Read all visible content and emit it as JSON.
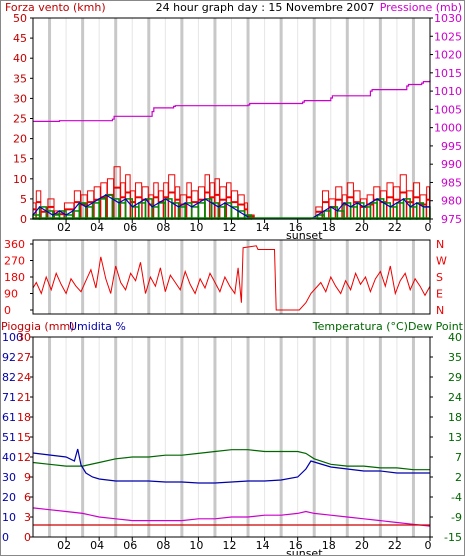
{
  "colors": {
    "wind_axis": "#c00000",
    "pressure_axis": "#cc00cc",
    "gust": "#ee0000",
    "wind_green": "#008800",
    "wind_blue": "#0000cc",
    "direction": "#ee0000",
    "humidity": "#0000aa",
    "temperature": "#006600",
    "dewpoint": "#cc00cc",
    "rain": "#cc0000",
    "grid": "#c0c0c0",
    "frame": "#000000"
  },
  "chart_data": [
    {
      "id": "panel1",
      "type": "line",
      "title": "24 hour graph day : 15 Novembre 2007",
      "left_label": "Forza vento (kmh)",
      "right_label": "Pressione (mb)",
      "x_ticks": [
        "02",
        "04",
        "06",
        "08",
        "10",
        "12",
        "14",
        "16",
        "18",
        "20",
        "22",
        "0"
      ],
      "sunset_label": "sunset",
      "ylim_left": [
        0,
        50
      ],
      "yticks_left": [
        "0",
        "5",
        "10",
        "15",
        "20",
        "25",
        "30",
        "35",
        "40",
        "45",
        "50"
      ],
      "ylim_right": [
        975,
        1030
      ],
      "yticks_right": [
        "975",
        "980",
        "985",
        "990",
        "995",
        "1000",
        "1005",
        "1010",
        "1015",
        "1020",
        "1025",
        "1030"
      ],
      "series": [
        {
          "name": "Pressione",
          "axis": "right",
          "x": [
            0.0,
            1.5,
            1.6,
            4.8,
            4.9,
            7.2,
            7.3,
            8.5,
            8.6,
            13.0,
            13.1,
            16.3,
            16.4,
            18.0,
            18.1,
            20.4,
            20.5,
            22.6,
            22.7,
            23.5,
            23.6,
            24.0
          ],
          "values": [
            1001.7,
            1001.7,
            1001.9,
            1002.3,
            1003.1,
            1004.4,
            1005.4,
            1005.8,
            1006.0,
            1006.2,
            1006.6,
            1007.0,
            1007.4,
            1008.1,
            1008.7,
            1010.0,
            1010.4,
            1011.4,
            1011.8,
            1012.2,
            1012.6,
            1013.0
          ]
        },
        {
          "name": "raffica",
          "axis": "left",
          "x": [
            0.0,
            0.2,
            0.5,
            0.9,
            1.3,
            1.9,
            2.5,
            2.9,
            3.3,
            3.7,
            4.1,
            4.5,
            4.9,
            5.3,
            5.6,
            5.9,
            6.2,
            6.6,
            7.0,
            7.3,
            7.6,
            7.9,
            8.2,
            8.6,
            8.9,
            9.3,
            9.6,
            10.0,
            10.4,
            10.7,
            11.0,
            11.3,
            11.7,
            12.0,
            12.4,
            12.8,
            13.0,
            13.4,
            13.8,
            14.2,
            14.6,
            15.0,
            15.4,
            15.8,
            16.2,
            16.6,
            17.1,
            17.5,
            17.9,
            18.3,
            18.7,
            19.0,
            19.4,
            19.8,
            20.2,
            20.6,
            21.0,
            21.4,
            21.8,
            22.2,
            22.6,
            23.0,
            23.4,
            23.8,
            24.0
          ],
          "values": [
            4,
            7,
            3,
            5,
            2,
            4,
            7,
            6,
            7,
            8,
            9,
            10,
            13,
            9,
            11,
            7,
            9,
            8,
            6,
            9,
            7,
            9,
            11,
            8,
            6,
            9,
            7,
            8,
            11,
            9,
            10,
            8,
            9,
            7,
            6,
            4,
            1,
            0,
            0,
            0,
            0,
            0,
            0,
            0,
            0,
            0,
            3,
            7,
            5,
            8,
            6,
            9,
            7,
            5,
            6,
            8,
            7,
            9,
            8,
            11,
            7,
            9,
            6,
            8,
            7
          ]
        },
        {
          "name": "velocita",
          "axis": "left",
          "x": [
            0.0,
            0.4,
            0.8,
            1.2,
            1.6,
            2.0,
            2.4,
            2.8,
            3.2,
            3.6,
            4.0,
            4.4,
            4.8,
            5.2,
            5.6,
            6.0,
            6.4,
            6.8,
            7.2,
            7.6,
            8.0,
            8.4,
            8.8,
            9.2,
            9.6,
            10.0,
            10.4,
            10.8,
            11.2,
            11.6,
            12.0,
            12.4,
            12.8,
            13.2,
            16.8,
            17.2,
            17.6,
            18.0,
            18.4,
            18.8,
            19.2,
            19.6,
            20.0,
            20.4,
            20.8,
            21.2,
            21.6,
            22.0,
            22.4,
            22.8,
            23.2,
            23.6,
            24.0
          ],
          "values": [
            1,
            3,
            2,
            1,
            2,
            1,
            2,
            4,
            3,
            4,
            5,
            6,
            5,
            4,
            5,
            3,
            4,
            5,
            3,
            4,
            5,
            4,
            3,
            4,
            3,
            4,
            5,
            4,
            3,
            4,
            3,
            2,
            1,
            0,
            0,
            1,
            2,
            3,
            2,
            4,
            3,
            4,
            3,
            4,
            5,
            4,
            3,
            4,
            5,
            3,
            4,
            3,
            3
          ]
        }
      ]
    },
    {
      "id": "panel2",
      "type": "line",
      "left_ticks": [
        "360",
        "270",
        "180",
        "90",
        "0"
      ],
      "ylim": [
        0,
        360
      ],
      "right_letters": [
        "N",
        "W",
        "S",
        "E",
        "N"
      ],
      "series": [
        {
          "name": "direzione",
          "x": [
            0.0,
            0.2,
            0.5,
            0.8,
            1.1,
            1.4,
            1.7,
            2.0,
            2.3,
            2.6,
            2.9,
            3.2,
            3.5,
            3.8,
            4.1,
            4.4,
            4.7,
            5.0,
            5.3,
            5.6,
            5.9,
            6.2,
            6.5,
            6.8,
            7.1,
            7.4,
            7.7,
            8.0,
            8.3,
            8.6,
            8.9,
            9.2,
            9.5,
            9.8,
            10.1,
            10.4,
            10.7,
            11.0,
            11.3,
            11.6,
            11.9,
            12.2,
            12.4,
            12.6,
            12.7,
            13.5,
            13.6,
            14.6,
            14.7,
            16.0,
            16.1,
            16.5,
            16.8,
            17.1,
            17.4,
            17.7,
            18.0,
            18.3,
            18.6,
            18.9,
            19.2,
            19.5,
            19.8,
            20.1,
            20.4,
            20.7,
            21.0,
            21.3,
            21.6,
            21.9,
            22.2,
            22.5,
            22.8,
            23.1,
            23.4,
            23.7,
            24.0
          ],
          "values": [
            120,
            150,
            90,
            180,
            110,
            200,
            140,
            90,
            170,
            130,
            100,
            160,
            220,
            120,
            290,
            170,
            90,
            240,
            150,
            110,
            200,
            160,
            260,
            90,
            180,
            130,
            230,
            100,
            190,
            150,
            110,
            210,
            140,
            90,
            170,
            120,
            200,
            150,
            100,
            180,
            130,
            90,
            230,
            40,
            340,
            350,
            330,
            330,
            0,
            0,
            0,
            40,
            90,
            120,
            150,
            100,
            180,
            130,
            90,
            160,
            110,
            200,
            140,
            180,
            100,
            170,
            210,
            130,
            240,
            90,
            160,
            200,
            110,
            170,
            130,
            80,
            130
          ]
        }
      ]
    },
    {
      "id": "panel3",
      "type": "line",
      "left_label_rain": "Pioggia (mm)",
      "left_label_hum": "Umidita %",
      "right_label": "Temperatura (°C)Dew Point",
      "x_ticks": [
        "02",
        "04",
        "06",
        "08",
        "10",
        "12",
        "14",
        "16",
        "18",
        "20",
        "22",
        "0"
      ],
      "sunset_label": "sunset",
      "rain_ticks": [
        "0",
        "3",
        "6",
        "9",
        "12",
        "15",
        "18",
        "21",
        "24",
        "27",
        "30"
      ],
      "hum_ticks": [
        "0",
        "10",
        "20",
        "30",
        "40",
        "51",
        "61",
        "71",
        "82",
        "92",
        "100"
      ],
      "ylim_hum": [
        0,
        100
      ],
      "temp_ticks": [
        "40",
        "35",
        "29",
        "24",
        "18",
        "13",
        "7",
        "2",
        "-4",
        "-9",
        "-15"
      ],
      "ylim_temp": [
        -15,
        40
      ],
      "series": [
        {
          "name": "Umidita",
          "axis": "hum",
          "x": [
            0,
            1.0,
            2.0,
            2.5,
            2.7,
            2.9,
            3.2,
            3.6,
            4.0,
            5.0,
            6.0,
            7.0,
            8.0,
            9.0,
            10.0,
            11.0,
            12.0,
            13.0,
            14.0,
            15.0,
            16.0,
            16.5,
            16.8,
            17.2,
            18.0,
            19.0,
            20.0,
            21.0,
            22.0,
            23.0,
            24.0
          ],
          "values": [
            42,
            41,
            40,
            38,
            44,
            36,
            32,
            30,
            29,
            28,
            28,
            28,
            27.5,
            27.5,
            27,
            27,
            27.5,
            28,
            28,
            28.5,
            30,
            34,
            38,
            37,
            35,
            34,
            33,
            33,
            32,
            32,
            32
          ]
        },
        {
          "name": "Temperatura",
          "axis": "temp",
          "x": [
            0,
            1.0,
            2.0,
            3.0,
            4.0,
            5.0,
            6.0,
            7.0,
            8.0,
            9.0,
            10.0,
            11.0,
            12.0,
            13.0,
            14.0,
            15.0,
            16.0,
            16.5,
            17.0,
            18.0,
            19.0,
            20.0,
            21.0,
            22.0,
            23.0,
            24.0
          ],
          "values": [
            5.5,
            5.0,
            4.5,
            4.5,
            5.5,
            6.5,
            7.0,
            7.0,
            7.5,
            7.5,
            8.0,
            8.5,
            9.0,
            9.0,
            8.5,
            8.5,
            8.5,
            8.0,
            6.5,
            5.0,
            4.5,
            4.5,
            4.0,
            4.0,
            3.5,
            3.5
          ]
        },
        {
          "name": "Dew Point",
          "axis": "temp",
          "x": [
            0,
            1.0,
            2.0,
            3.0,
            3.5,
            4.0,
            5.0,
            6.0,
            7.0,
            8.0,
            9.0,
            10.0,
            11.0,
            12.0,
            13.0,
            14.0,
            15.0,
            16.0,
            16.5,
            17.0,
            18.0,
            19.0,
            20.0,
            21.0,
            22.0,
            23.0,
            24.0
          ],
          "values": [
            -7.0,
            -7.5,
            -8.0,
            -8.5,
            -9.0,
            -9.5,
            -10.0,
            -10.5,
            -10.5,
            -10.5,
            -10.5,
            -10.0,
            -10.0,
            -9.5,
            -9.5,
            -9.0,
            -9.0,
            -8.5,
            -8.0,
            -8.5,
            -9.0,
            -9.5,
            -10.0,
            -10.5,
            -11.0,
            -11.5,
            -12.0
          ]
        },
        {
          "name": "Pioggia",
          "axis": "rain",
          "x": [
            0,
            24
          ],
          "values": [
            0,
            0
          ]
        }
      ]
    }
  ]
}
